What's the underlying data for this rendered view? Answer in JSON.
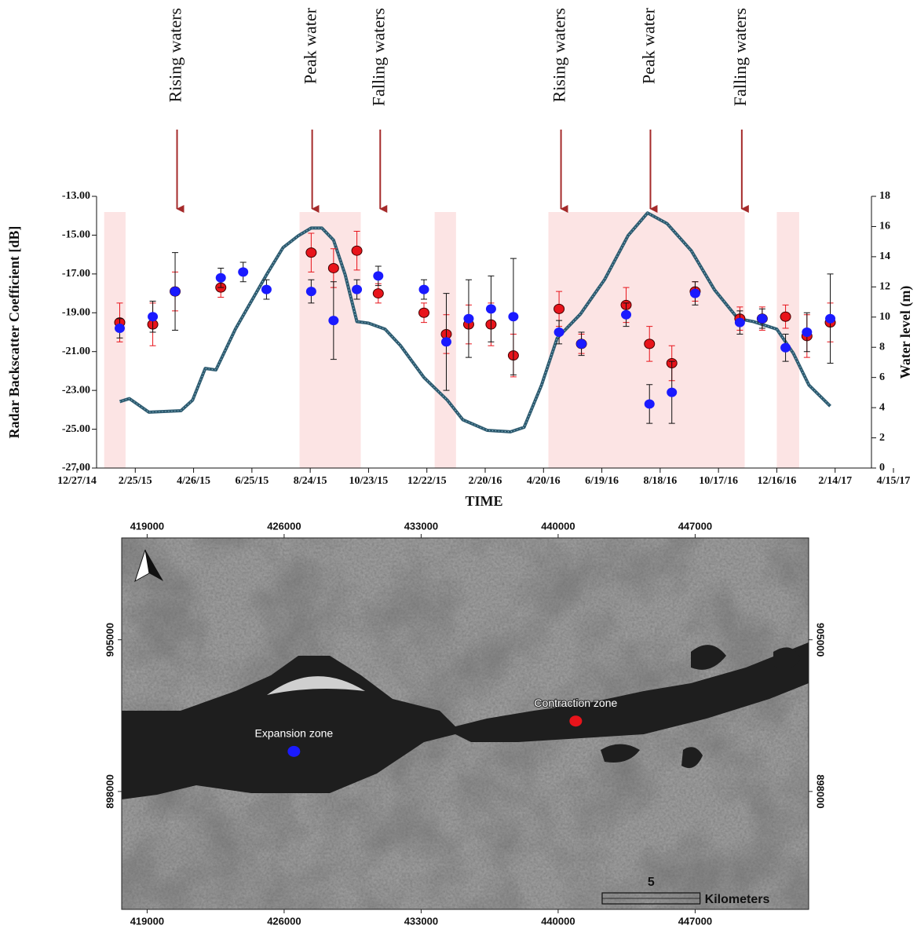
{
  "chart_data": [
    {
      "type": "dual-axis-scatter-line",
      "ylabel": "Radar Backscatter Coefficient [dB]",
      "y2label": "Water level (m)",
      "xlabel": "TIME",
      "xlim": [
        0,
        840
      ],
      "xticks": [
        {
          "value": 0,
          "label": "12/27/14"
        },
        {
          "value": 60,
          "label": "2/25/15"
        },
        {
          "value": 120,
          "label": "4/26/15"
        },
        {
          "value": 180,
          "label": "6/25/15"
        },
        {
          "value": 240,
          "label": "8/24/15"
        },
        {
          "value": 300,
          "label": "10/23/15"
        },
        {
          "value": 360,
          "label": "12/22/15"
        },
        {
          "value": 420,
          "label": "2/20/16"
        },
        {
          "value": 480,
          "label": "4/20/16"
        },
        {
          "value": 540,
          "label": "6/19/16"
        },
        {
          "value": 600,
          "label": "8/18/16"
        },
        {
          "value": 660,
          "label": "10/17/16"
        },
        {
          "value": 720,
          "label": "12/16/16"
        },
        {
          "value": 780,
          "label": "2/14/17"
        },
        {
          "value": 840,
          "label": "4/15/17"
        }
      ],
      "ylim": [
        -27,
        -13
      ],
      "yticks": [
        {
          "value": -13,
          "label": "-13.00"
        },
        {
          "value": -15,
          "label": "-15.00"
        },
        {
          "value": -17,
          "label": "-17.00"
        },
        {
          "value": -19,
          "label": "-19.00"
        },
        {
          "value": -21,
          "label": "-21.00"
        },
        {
          "value": -23,
          "label": "-23.00"
        },
        {
          "value": -25,
          "label": "-25.00"
        },
        {
          "value": -27,
          "label": "-27.00"
        }
      ],
      "y2lim": [
        0,
        18
      ],
      "y2ticks": [
        0,
        2,
        4,
        6,
        8,
        10,
        12,
        14,
        16,
        18
      ],
      "shaded_periods": [
        [
          28,
          50
        ],
        [
          229,
          292
        ],
        [
          368,
          390
        ],
        [
          485,
          687
        ],
        [
          720,
          743
        ]
      ],
      "shade_color": "#fce4e4",
      "annotations": [
        {
          "text": "Rising waters",
          "x": 103
        },
        {
          "text": "Peak water",
          "x": 242
        },
        {
          "text": "Falling waters",
          "x": 312
        },
        {
          "text": "Rising waters",
          "x": 498
        },
        {
          "text": "Peak water",
          "x": 590
        },
        {
          "text": "Falling waters",
          "x": 684
        }
      ],
      "arrow_color": "#a52a2a",
      "series": [
        {
          "kind": "line",
          "axis": "y2",
          "color": "#2e5b70",
          "x": [
            44,
            54,
            74,
            107,
            119,
            132,
            143,
            163,
            179,
            195,
            212,
            228,
            241,
            252,
            264,
            276,
            288,
            300,
            317,
            333,
            357,
            381,
            397,
            422,
            446,
            460,
            478,
            494,
            518,
            543,
            567,
            587,
            607,
            632,
            656,
            680,
            696,
            720,
            737,
            753,
            775
          ],
          "values": [
            4.4,
            4.6,
            3.7,
            3.8,
            4.5,
            6.6,
            6.5,
            9.2,
            11.0,
            12.8,
            14.6,
            15.4,
            15.9,
            15.9,
            15.1,
            12.8,
            9.7,
            9.6,
            9.2,
            8.1,
            6.0,
            4.5,
            3.2,
            2.5,
            2.4,
            2.7,
            5.5,
            8.6,
            10.2,
            12.5,
            15.4,
            16.9,
            16.2,
            14.4,
            11.8,
            9.9,
            9.7,
            9.2,
            7.6,
            5.5,
            4.1
          ]
        },
        {
          "kind": "points",
          "color": "#e8141b",
          "error_color": "#e8141b",
          "x": [
            44,
            78,
            101,
            148,
            241,
            264,
            288,
            310,
            357,
            380,
            403,
            426,
            449,
            496,
            519,
            565,
            589,
            612,
            636,
            682,
            705,
            729,
            751,
            775
          ],
          "values": [
            -19.5,
            -19.6,
            -17.9,
            -17.7,
            -15.9,
            -16.7,
            -15.8,
            -18.0,
            -19.0,
            -20.1,
            -19.6,
            -19.6,
            -21.2,
            -18.8,
            -20.6,
            -18.6,
            -20.6,
            -21.6,
            -17.9,
            -19.3,
            -19.3,
            -19.2,
            -20.2,
            -19.5
          ],
          "errors": [
            1.0,
            1.1,
            1.0,
            0.5,
            1.0,
            1.0,
            1.0,
            0.5,
            0.5,
            1.0,
            1.0,
            1.1,
            1.1,
            0.9,
            0.5,
            0.9,
            0.9,
            0.9,
            0.5,
            0.6,
            0.6,
            0.6,
            1.1,
            1.0
          ]
        },
        {
          "kind": "points",
          "color": "#1a1aff",
          "error_color": "#111111",
          "x": [
            44,
            78,
            101,
            148,
            171,
            195,
            241,
            264,
            288,
            310,
            357,
            380,
            403,
            426,
            449,
            496,
            519,
            565,
            589,
            612,
            636,
            682,
            705,
            729,
            751,
            775
          ],
          "values": [
            -19.8,
            -19.2,
            -17.9,
            -17.2,
            -16.9,
            -17.8,
            -17.9,
            -19.4,
            -17.8,
            -17.1,
            -17.8,
            -20.5,
            -19.3,
            -18.8,
            -19.2,
            -20.0,
            -20.6,
            -19.1,
            -23.7,
            -23.1,
            -18.0,
            -19.5,
            -19.3,
            -20.8,
            -20.0,
            -19.3
          ],
          "errors": [
            0.5,
            0.8,
            2.0,
            0.5,
            0.5,
            0.5,
            0.6,
            2.0,
            0.5,
            0.5,
            0.5,
            2.5,
            2.0,
            1.7,
            3.0,
            0.6,
            0.6,
            0.6,
            1.0,
            1.6,
            0.6,
            0.6,
            0.5,
            0.7,
            1.0,
            2.3
          ]
        }
      ]
    },
    {
      "type": "map",
      "xlim": [
        417700,
        452800
      ],
      "ylim": [
        892560,
        909700
      ],
      "xticks": [
        419000,
        426000,
        433000,
        440000,
        447000
      ],
      "yticks": [
        898000,
        905000
      ],
      "points": [
        {
          "label": "Expansion zone",
          "x": 426500,
          "y": 899850,
          "color": "#1a1aff"
        },
        {
          "label": "Contraction zone",
          "x": 440900,
          "y": 901250,
          "color": "#e8141b"
        }
      ],
      "scale_length": 5,
      "scale_unit": "Kilometers"
    }
  ]
}
